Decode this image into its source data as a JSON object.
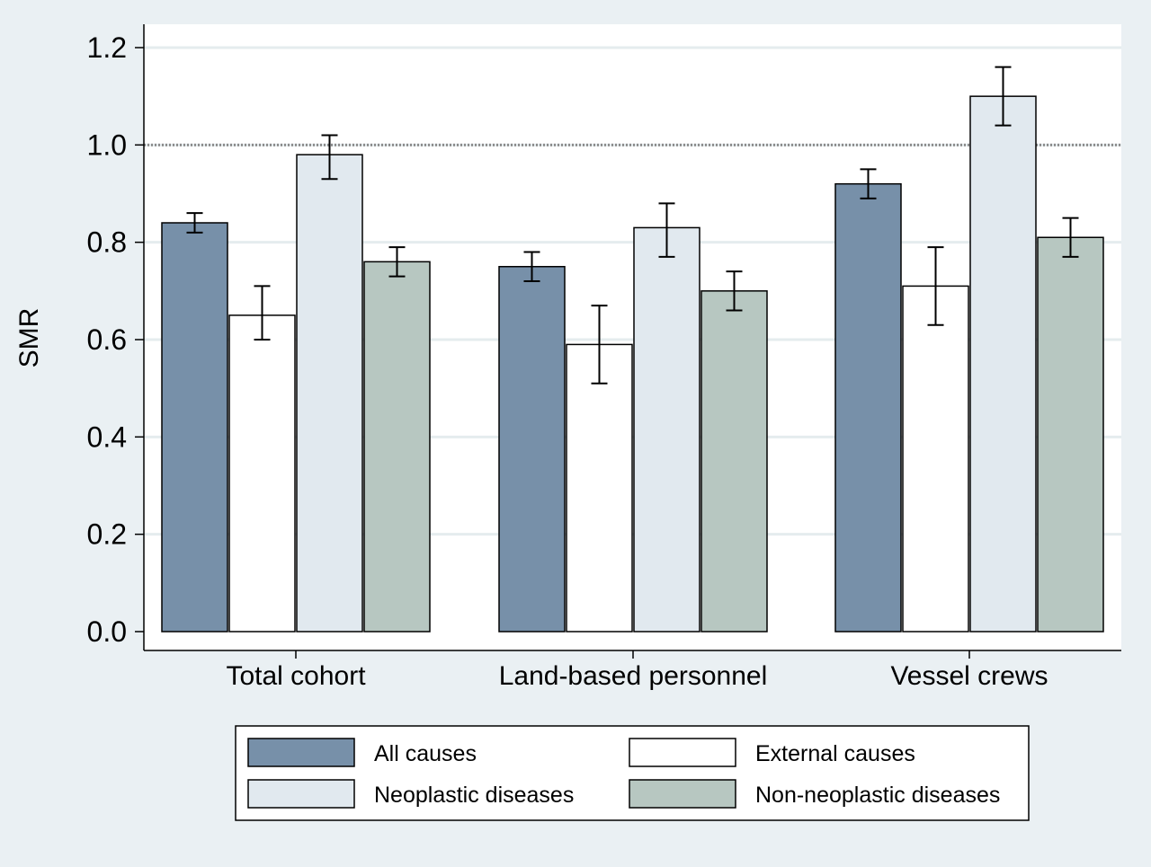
{
  "colors": {
    "background": "#eaf0f3",
    "plot_background": "#ffffff",
    "gridline": "#e5ecee",
    "reference_line": "#8c8c8c",
    "bar_outline": "#000000"
  },
  "chart_data": {
    "type": "bar",
    "ylabel": "SMR",
    "xlabel": "",
    "title": "",
    "ylim": [
      0,
      1.2
    ],
    "yticks": [
      "0.0",
      "0.2",
      "0.4",
      "0.6",
      "0.8",
      "1.0",
      "1.2"
    ],
    "reference_line": 1.0,
    "grid": true,
    "legend_position": "bottom",
    "categories": [
      "Total cohort",
      "Land-based personnel",
      "Vessel crews"
    ],
    "series": [
      {
        "name": "All causes",
        "color": "#7790a9",
        "values": [
          0.84,
          0.75,
          0.92
        ],
        "ci_low": [
          0.82,
          0.72,
          0.89
        ],
        "ci_high": [
          0.86,
          0.78,
          0.95
        ]
      },
      {
        "name": "External causes",
        "color": "#ffffff",
        "values": [
          0.65,
          0.59,
          0.71
        ],
        "ci_low": [
          0.6,
          0.51,
          0.63
        ],
        "ci_high": [
          0.71,
          0.67,
          0.79
        ]
      },
      {
        "name": "Neoplastic diseases",
        "color": "#e1e9ef",
        "values": [
          0.98,
          0.83,
          1.1
        ],
        "ci_low": [
          0.93,
          0.77,
          1.04
        ],
        "ci_high": [
          1.02,
          0.88,
          1.16
        ]
      },
      {
        "name": "Non-neoplastic diseases",
        "color": "#b7c7c1",
        "values": [
          0.76,
          0.7,
          0.81
        ],
        "ci_low": [
          0.73,
          0.66,
          0.77
        ],
        "ci_high": [
          0.79,
          0.74,
          0.85
        ]
      }
    ]
  }
}
